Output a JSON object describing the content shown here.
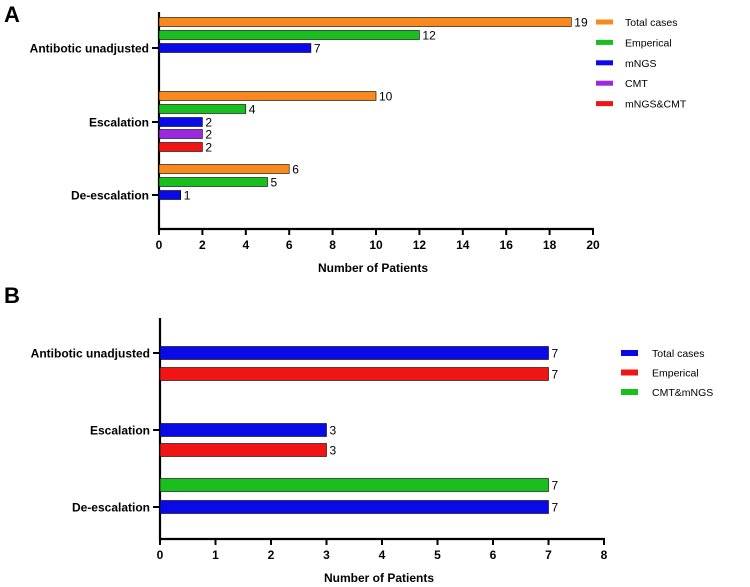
{
  "colors": {
    "orange": "#f7891f",
    "green": "#19bf1c",
    "blue": "#0a0ae6",
    "purple": "#9c28e0",
    "red": "#f01414"
  },
  "chart_data": [
    {
      "panel_label": "A",
      "type": "bar",
      "orientation": "horizontal",
      "categories": [
        "Antibotic unadjusted",
        "Escalation",
        "De-escalation"
      ],
      "series": [
        {
          "name": "Total cases",
          "color": "orange",
          "values": [
            19,
            10,
            6
          ]
        },
        {
          "name": "Emperical",
          "color": "green",
          "values": [
            12,
            4,
            5
          ]
        },
        {
          "name": "mNGS",
          "color": "blue",
          "values": [
            7,
            2,
            1
          ]
        },
        {
          "name": "CMT",
          "color": "purple",
          "values": [
            null,
            2,
            null
          ]
        },
        {
          "name": "mNGS&CMT",
          "color": "red",
          "values": [
            null,
            2,
            null
          ]
        }
      ],
      "xlabel": "Number of Patients",
      "ylabel": "",
      "xlim": [
        0,
        20
      ],
      "xticks": [
        0,
        2,
        4,
        6,
        8,
        10,
        12,
        14,
        16,
        18,
        20
      ],
      "legend": "top-right",
      "grid": false
    },
    {
      "panel_label": "B",
      "type": "bar",
      "orientation": "horizontal",
      "categories": [
        "Antibotic unadjusted",
        "Escalation",
        "De-escalation"
      ],
      "series": [
        {
          "name": "Total cases",
          "color": "blue",
          "values": [
            7,
            3,
            7
          ]
        },
        {
          "name": "Emperical",
          "color": "red",
          "values": [
            7,
            3,
            null
          ]
        },
        {
          "name": "CMT&mNGS",
          "color": "green",
          "values": [
            null,
            null,
            7
          ]
        }
      ],
      "xlabel": "Number of Patients",
      "ylabel": "",
      "xlim": [
        0,
        8
      ],
      "xticks": [
        0,
        1,
        2,
        3,
        4,
        5,
        6,
        7,
        8
      ],
      "legend": "top-right",
      "grid": false
    }
  ]
}
